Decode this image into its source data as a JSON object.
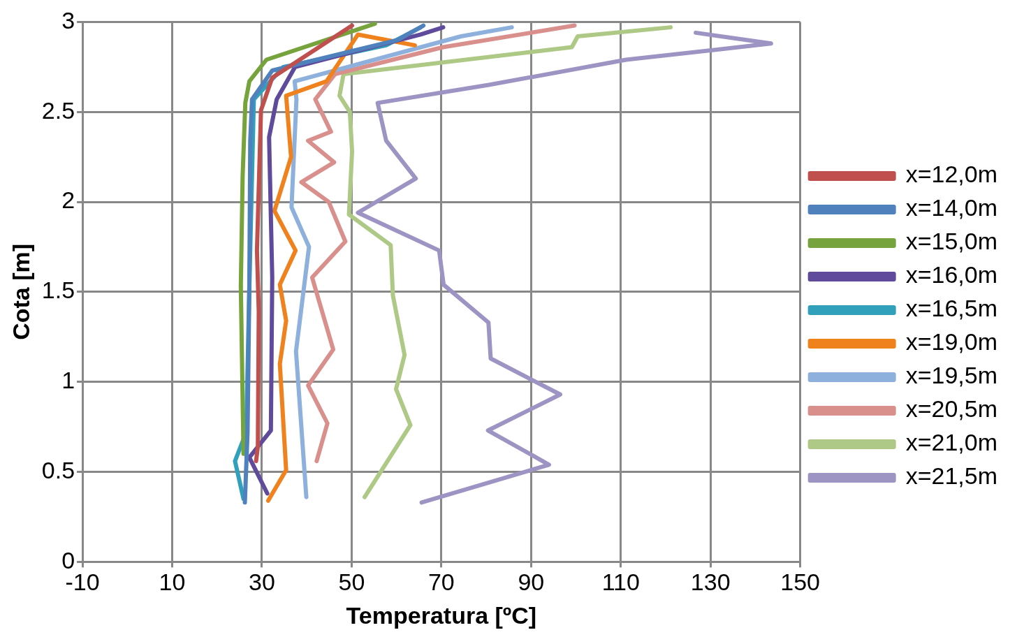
{
  "chart_data": {
    "type": "line",
    "xlabel": "Temperatura [ºC]",
    "ylabel": "Cota [m]",
    "xlim": [
      -10,
      150
    ],
    "xticks": [
      -10,
      10,
      30,
      50,
      70,
      90,
      110,
      130,
      150
    ],
    "ylim": [
      0,
      3
    ],
    "yticks": [
      0,
      0.5,
      1,
      1.5,
      2,
      2.5,
      3
    ],
    "grid": true,
    "legend": "right",
    "marker": "none",
    "line_style": "solid",
    "series": [
      {
        "name": "x=12,0m",
        "color": "#c0504d",
        "x": [
          28.7,
          29.1,
          29.3,
          28.9,
          29.8,
          32.3,
          50.1
        ],
        "values": [
          0.56,
          0.64,
          1.39,
          1.73,
          2.51,
          2.69,
          2.98
        ]
      },
      {
        "name": "x=14,0m",
        "color": "#4f81bd",
        "x": [
          26.2,
          26.8,
          27.2,
          27.4,
          27.8,
          32.3,
          60.3,
          66
        ],
        "values": [
          0.33,
          0.72,
          1.53,
          2.34,
          2.57,
          2.73,
          2.9,
          2.98
        ]
      },
      {
        "name": "x=15,0m",
        "color": "#77a33c",
        "x": [
          25.9,
          25.3,
          25.7,
          26.3,
          27.2,
          31,
          55.2
        ],
        "values": [
          0.6,
          1.53,
          2.14,
          2.55,
          2.67,
          2.79,
          2.99
        ]
      },
      {
        "name": "x=16,0m",
        "color": "#604a9b",
        "x": [
          31.2,
          27.2,
          32,
          32.3,
          31.6,
          33.3,
          37.4,
          65.4,
          70.4
        ],
        "values": [
          0.38,
          0.58,
          0.73,
          1.58,
          2.36,
          2.57,
          2.75,
          2.93,
          2.97
        ]
      },
      {
        "name": "x=16,5m",
        "color": "#31a0bb",
        "x": [
          25.9,
          24,
          26.5,
          27.2,
          28.2,
          34.8,
          57.7,
          65.4
        ],
        "values": [
          0.35,
          0.56,
          0.72,
          1.53,
          2.57,
          2.75,
          2.87,
          2.97
        ]
      },
      {
        "name": "x=19,0m",
        "color": "#f0821e",
        "x": [
          31.4,
          35.4,
          34,
          35.4,
          34,
          37.5,
          32.8,
          36.5,
          35.4,
          44.4,
          51.4,
          64.1
        ],
        "values": [
          0.34,
          0.51,
          1.1,
          1.34,
          1.54,
          1.73,
          1.95,
          2.25,
          2.59,
          2.67,
          2.93,
          2.87
        ]
      },
      {
        "name": "x=19,5m",
        "color": "#8eb0dc",
        "x": [
          39.9,
          37.6,
          40.5,
          36.6,
          37.7,
          37.3,
          74.4,
          85.7
        ],
        "values": [
          0.36,
          1.17,
          1.75,
          1.97,
          2.57,
          2.67,
          2.92,
          2.97
        ]
      },
      {
        "name": "x=20,5m",
        "color": "#d98f8c",
        "x": [
          42.2,
          44.6,
          40.3,
          45.9,
          41.2,
          48.6,
          44.9,
          38.8,
          46.1,
          40.3,
          45.4,
          41.9,
          46.3,
          70.4,
          99.7
        ],
        "values": [
          0.56,
          0.77,
          0.98,
          1.18,
          1.58,
          1.78,
          2,
          2.11,
          2.22,
          2.34,
          2.39,
          2.57,
          2.71,
          2.86,
          2.98
        ]
      },
      {
        "name": "x=21,0m",
        "color": "#adc985",
        "x": [
          52.9,
          63.1,
          59.9,
          61.8,
          59.2,
          58.7,
          49.4,
          50.1,
          49.6,
          47.3,
          48.2,
          99.1,
          100.4,
          121.1
        ],
        "values": [
          0.36,
          0.76,
          0.96,
          1.15,
          1.48,
          1.76,
          1.93,
          2.28,
          2.5,
          2.59,
          2.71,
          2.86,
          2.92,
          2.97
        ]
      },
      {
        "name": "x=21,5m",
        "color": "#9d94c4",
        "x": [
          65.6,
          94,
          80.4,
          96.5,
          81,
          80.5,
          70.5,
          69.5,
          51.4,
          64.3,
          57.7,
          55.8,
          80.6,
          111.2,
          143.5,
          126.7
        ],
        "values": [
          0.33,
          0.54,
          0.73,
          0.93,
          1.13,
          1.33,
          1.54,
          1.73,
          1.94,
          2.13,
          2.34,
          2.55,
          2.65,
          2.79,
          2.88,
          2.94
        ]
      }
    ]
  }
}
